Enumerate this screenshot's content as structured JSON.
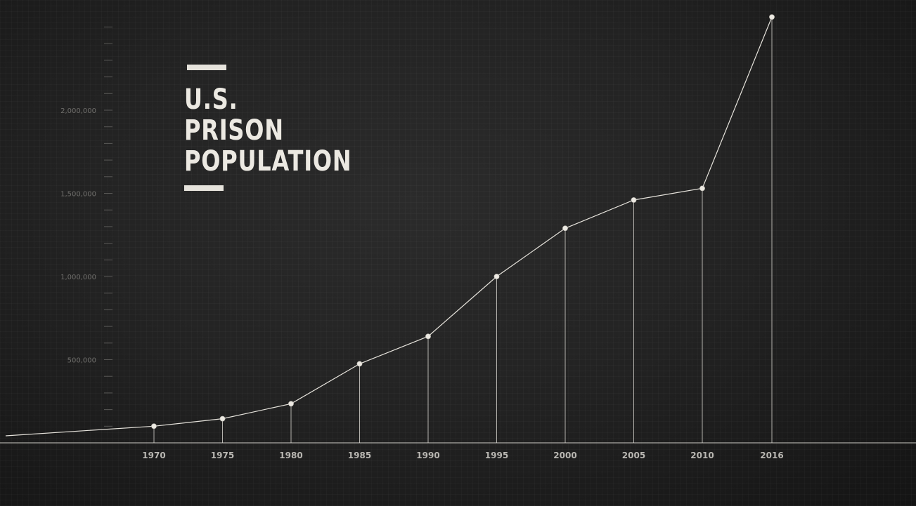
{
  "chart_data": {
    "type": "line",
    "title_lines": [
      "U.S.",
      "PRISON",
      "POPULATION"
    ],
    "categories": [
      "1970",
      "1975",
      "1980",
      "1985",
      "1990",
      "1995",
      "2000",
      "2005",
      "2010",
      "2016"
    ],
    "series": [
      {
        "values": [
          100000,
          145000,
          235000,
          475000,
          640000,
          1000000,
          1290000,
          1460000,
          1530000,
          2560000
        ]
      }
    ],
    "start_value": 0,
    "yticks": [
      {
        "value": 500000,
        "label": "500,000"
      },
      {
        "value": 1000000,
        "label": "1,000,000"
      },
      {
        "value": 1500000,
        "label": "1,500,000"
      },
      {
        "value": 2000000,
        "label": "2,000,000"
      }
    ],
    "ylim": [
      0,
      2600000
    ],
    "xlabel": "",
    "ylabel": "",
    "grid": true,
    "colors": {
      "background": "#232323",
      "line": "#e6e3dc",
      "text": "#ece9e2",
      "tick": "#6f6e6b"
    }
  }
}
